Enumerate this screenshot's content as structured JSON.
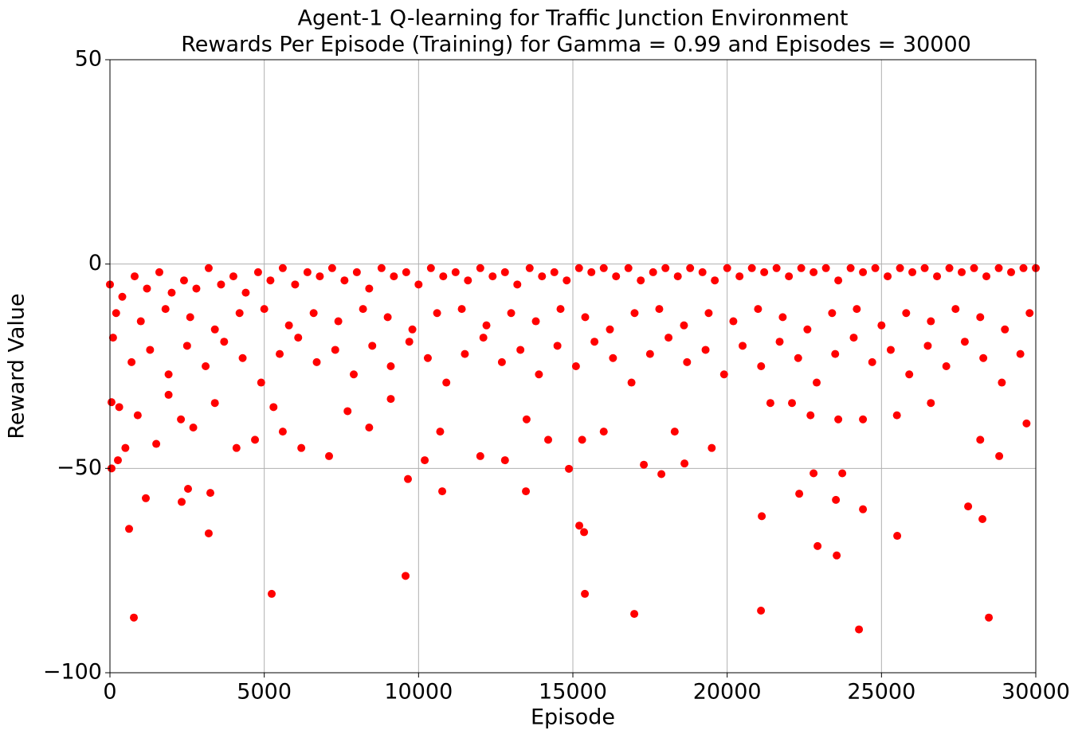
{
  "chart_data": {
    "type": "scatter",
    "title": [
      "Agent-1 Q-learning for Traffic Junction Environment",
      "Rewards Per Episode (Training) for Gamma = 0.99 and Episodes = 30000"
    ],
    "xlabel": "Episode",
    "ylabel": "Reward Value",
    "color": "#ff0000",
    "grid": true,
    "xlim": [
      0,
      30000
    ],
    "xticks": [
      0,
      5000,
      10000,
      15000,
      20000,
      25000,
      30000
    ],
    "ylim": [
      -100,
      50
    ],
    "yticks": [
      {
        "value": -100,
        "label": "−100"
      },
      {
        "value": -50,
        "label": "−50"
      },
      0,
      50
    ],
    "x": [
      0,
      400,
      800,
      1200,
      1600,
      2000,
      2400,
      2800,
      3200,
      3600,
      4000,
      4400,
      4800,
      5200,
      5600,
      6000,
      6400,
      6800,
      7200,
      7600,
      8000,
      8400,
      8800,
      9200,
      9600,
      10000,
      10400,
      10800,
      11200,
      11600,
      12000,
      12400,
      12800,
      13200,
      13600,
      14000,
      14400,
      14800,
      15200,
      15600,
      16000,
      16400,
      16800,
      17200,
      17600,
      18000,
      18400,
      18800,
      19200,
      19600,
      20000,
      20400,
      20800,
      21200,
      21600,
      22000,
      22400,
      22800,
      23200,
      23600,
      24000,
      24400,
      24800,
      25200,
      25600,
      26000,
      26400,
      26800,
      27200,
      27600,
      28000,
      28400,
      28800,
      29200,
      29600,
      30000,
      200,
      1000,
      1800,
      2600,
      3400,
      4200,
      5000,
      5800,
      6600,
      7400,
      8200,
      9000,
      9800,
      10600,
      11400,
      12200,
      13000,
      13800,
      14600,
      15400,
      16200,
      17000,
      17800,
      18600,
      19400,
      20200,
      21000,
      21800,
      22600,
      23400,
      24200,
      25000,
      25800,
      26600,
      27400,
      28200,
      29000,
      29800,
      100,
      700,
      1300,
      1900,
      2500,
      3100,
      3700,
      4300,
      4900,
      5500,
      6100,
      6700,
      7300,
      7900,
      8500,
      9100,
      9700,
      10300,
      10900,
      11500,
      12100,
      12700,
      13300,
      13900,
      14500,
      15100,
      15700,
      16300,
      16900,
      17500,
      18100,
      18700,
      19300,
      19900,
      20500,
      21100,
      21700,
      22300,
      22900,
      23500,
      24100,
      24700,
      25300,
      25900,
      26500,
      27100,
      27700,
      28300,
      28900,
      29500,
      300,
      500,
      900,
      1500,
      1900,
      2300,
      2700,
      3400,
      4100,
      4700,
      5300,
      5600,
      6200,
      7100,
      7700,
      8400,
      9100,
      10200,
      10700,
      12000,
      12800,
      13500,
      14200,
      15300,
      16000,
      18300,
      19500,
      21400,
      22100,
      22700,
      23600,
      24400,
      25500,
      26600,
      28200,
      29700,
      50,
      50,
      258,
      620,
      775,
      1162,
      2324,
      2530,
      3200,
      3253,
      5241,
      9579,
      9656,
      10767,
      13478,
      14872,
      15208,
      15363,
      15389,
      16990,
      17300,
      17868,
      18617,
      21121,
      21095,
      22335,
      22800,
      22929,
      23523,
      23549,
      23730,
      24271,
      24400,
      25510,
      27808,
      28272,
      28479,
      28815
    ],
    "values": [
      -5,
      -8,
      -3,
      -6,
      -2,
      -7,
      -4,
      -6,
      -1,
      -5,
      -3,
      -7,
      -2,
      -4,
      -1,
      -5,
      -2,
      -3,
      -1,
      -4,
      -2,
      -6,
      -1,
      -3,
      -2,
      -5,
      -1,
      -3,
      -2,
      -4,
      -1,
      -3,
      -2,
      -5,
      -1,
      -3,
      -2,
      -4,
      -1,
      -2,
      -1,
      -3,
      -1,
      -4,
      -2,
      -1,
      -3,
      -1,
      -2,
      -4,
      -1,
      -3,
      -1,
      -2,
      -1,
      -3,
      -1,
      -2,
      -1,
      -4,
      -1,
      -2,
      -1,
      -3,
      -1,
      -2,
      -1,
      -3,
      -1,
      -2,
      -1,
      -3,
      -1,
      -2,
      -1,
      -1,
      -12,
      -14,
      -11,
      -13,
      -16,
      -12,
      -11,
      -15,
      -12,
      -14,
      -11,
      -13,
      -16,
      -12,
      -11,
      -15,
      -12,
      -14,
      -11,
      -13,
      -16,
      -12,
      -11,
      -15,
      -12,
      -14,
      -11,
      -13,
      -16,
      -12,
      -11,
      -15,
      -12,
      -14,
      -11,
      -13,
      -16,
      -12,
      -18,
      -24,
      -21,
      -27,
      -20,
      -25,
      -19,
      -23,
      -29,
      -22,
      -18,
      -24,
      -21,
      -27,
      -20,
      -25,
      -19,
      -23,
      -29,
      -22,
      -18,
      -24,
      -21,
      -27,
      -20,
      -25,
      -19,
      -23,
      -29,
      -22,
      -18,
      -24,
      -21,
      -27,
      -20,
      -25,
      -19,
      -23,
      -29,
      -22,
      -18,
      -24,
      -21,
      -27,
      -20,
      -25,
      -19,
      -23,
      -29,
      -22,
      -35,
      -45,
      -37,
      -44,
      -32,
      -38,
      -40,
      -34,
      -45,
      -43,
      -35,
      -41,
      -45,
      -47,
      -36,
      -40,
      -33,
      -48,
      -41,
      -47,
      -48,
      -38,
      -43,
      -43,
      -41,
      -41,
      -45,
      -34,
      -34,
      -37,
      -38,
      -38,
      -37,
      -34,
      -43,
      -39,
      -33.8,
      -50,
      -48,
      -64.8,
      -86.5,
      -57.3,
      -58.2,
      -55,
      -65.9,
      -56,
      -80.7,
      -76.3,
      -52.6,
      -55.6,
      -55.6,
      -50.1,
      -64,
      -65.6,
      -80.7,
      -85.6,
      -49.1,
      -51.4,
      -48.8,
      -61.7,
      -84.8,
      -56.2,
      -51.2,
      -69,
      -57.7,
      -71.3,
      -51.2,
      -89.4,
      -60,
      -66.5,
      -59.3,
      -62.4,
      -86.5,
      -47
    ]
  }
}
